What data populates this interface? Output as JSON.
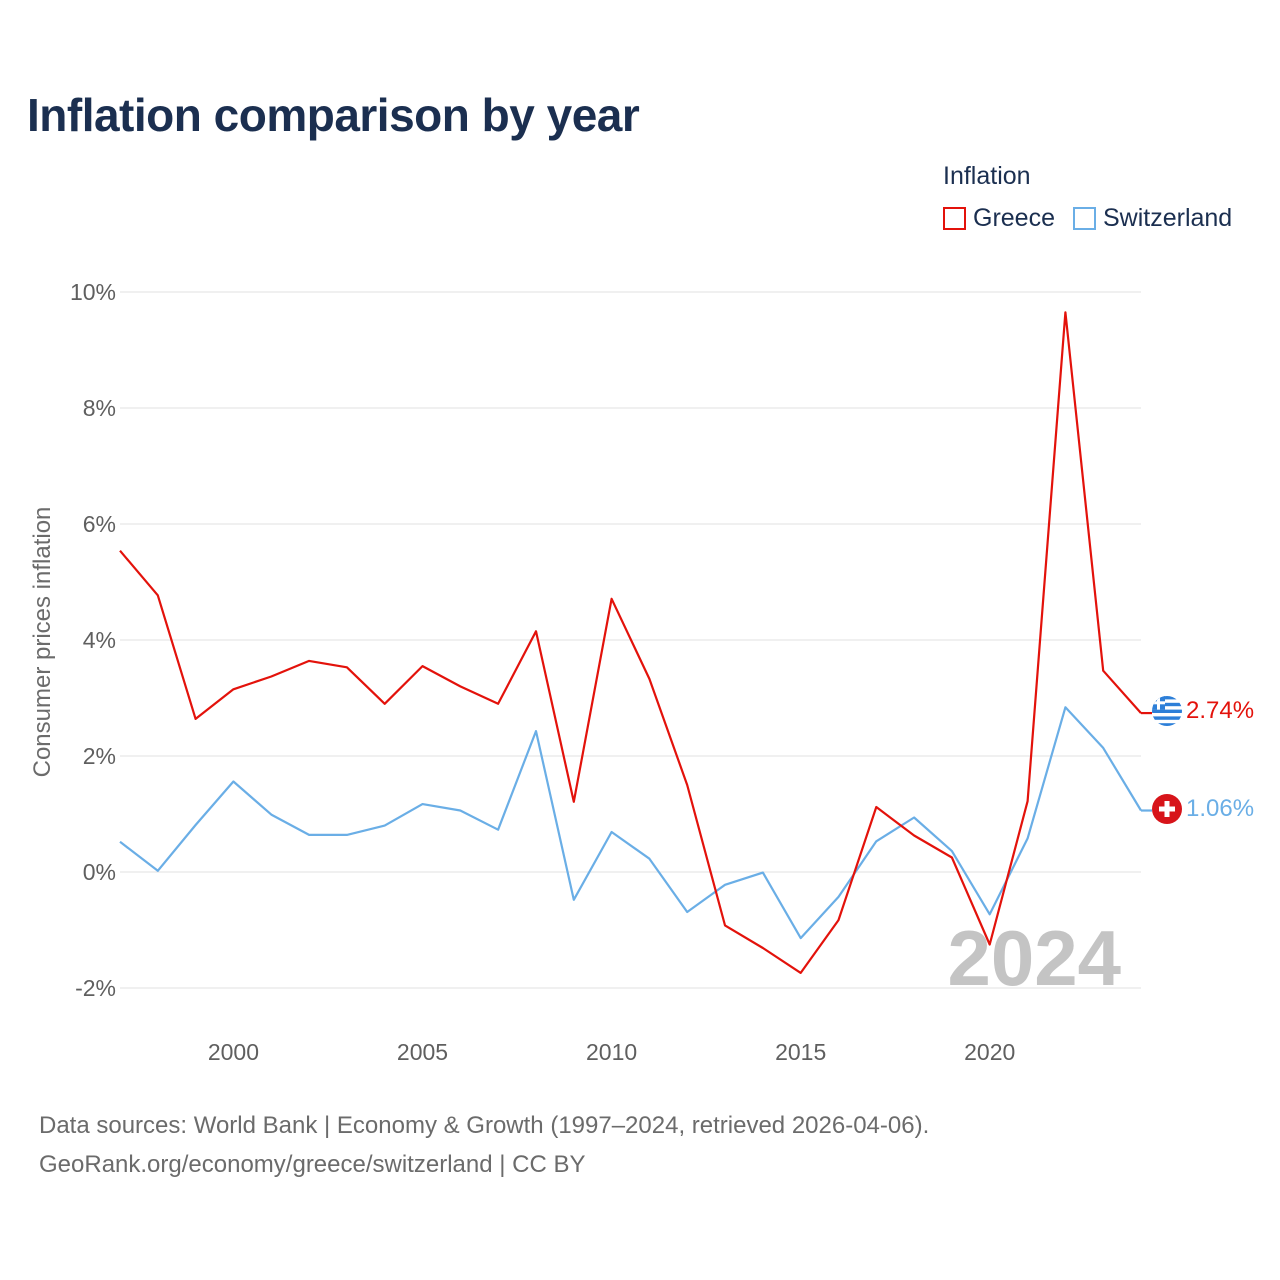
{
  "page": {
    "title": "Inflation comparison by year",
    "source_line1": "Data sources: World Bank | Economy & Growth (1997–2024, retrieved 2026-04-06).",
    "source_line2": "GeoRank.org/economy/greece/switzerland | CC BY"
  },
  "legend": {
    "title": "Inflation",
    "items": [
      {
        "label": "Greece",
        "color": "#e3120b"
      },
      {
        "label": "Switzerland",
        "color": "#6aaee6"
      }
    ]
  },
  "chart_data": {
    "type": "line",
    "title": "Inflation comparison by year",
    "xlabel": "",
    "ylabel": "Consumer prices inflation",
    "xlim": [
      1997,
      2024
    ],
    "ylim": [
      -2,
      10
    ],
    "yticks": [
      -2,
      0,
      2,
      4,
      6,
      8,
      10
    ],
    "ytick_labels": [
      "-2%",
      "0%",
      "2%",
      "4%",
      "6%",
      "8%",
      "10%"
    ],
    "xticks": [
      2000,
      2005,
      2010,
      2015,
      2020
    ],
    "xtick_labels": [
      "2000",
      "2005",
      "2010",
      "2015",
      "2020"
    ],
    "grid": true,
    "current_year": "2024",
    "x": [
      1997,
      1998,
      1999,
      2000,
      2001,
      2002,
      2003,
      2004,
      2005,
      2006,
      2007,
      2008,
      2009,
      2010,
      2011,
      2012,
      2013,
      2014,
      2015,
      2016,
      2017,
      2018,
      2019,
      2020,
      2021,
      2022,
      2023,
      2024
    ],
    "series": [
      {
        "name": "Greece",
        "color": "#e3120b",
        "end_label": "2.74%",
        "flag_icon": "greece-flag-icon",
        "values": [
          5.54,
          4.77,
          2.64,
          3.15,
          3.37,
          3.64,
          3.53,
          2.9,
          3.55,
          3.2,
          2.9,
          4.15,
          1.21,
          4.71,
          3.33,
          1.5,
          -0.92,
          -1.31,
          -1.74,
          -0.83,
          1.12,
          0.63,
          0.25,
          -1.25,
          1.22,
          9.65,
          3.47,
          2.74
        ]
      },
      {
        "name": "Switzerland",
        "color": "#6aaee6",
        "end_label": "1.06%",
        "flag_icon": "switzerland-flag-icon",
        "values": [
          0.52,
          0.02,
          0.81,
          1.56,
          0.99,
          0.64,
          0.64,
          0.8,
          1.17,
          1.06,
          0.73,
          2.43,
          -0.48,
          0.69,
          0.23,
          -0.69,
          -0.22,
          -0.01,
          -1.14,
          -0.43,
          0.53,
          0.94,
          0.36,
          -0.73,
          0.58,
          2.84,
          2.14,
          1.06
        ]
      }
    ]
  }
}
